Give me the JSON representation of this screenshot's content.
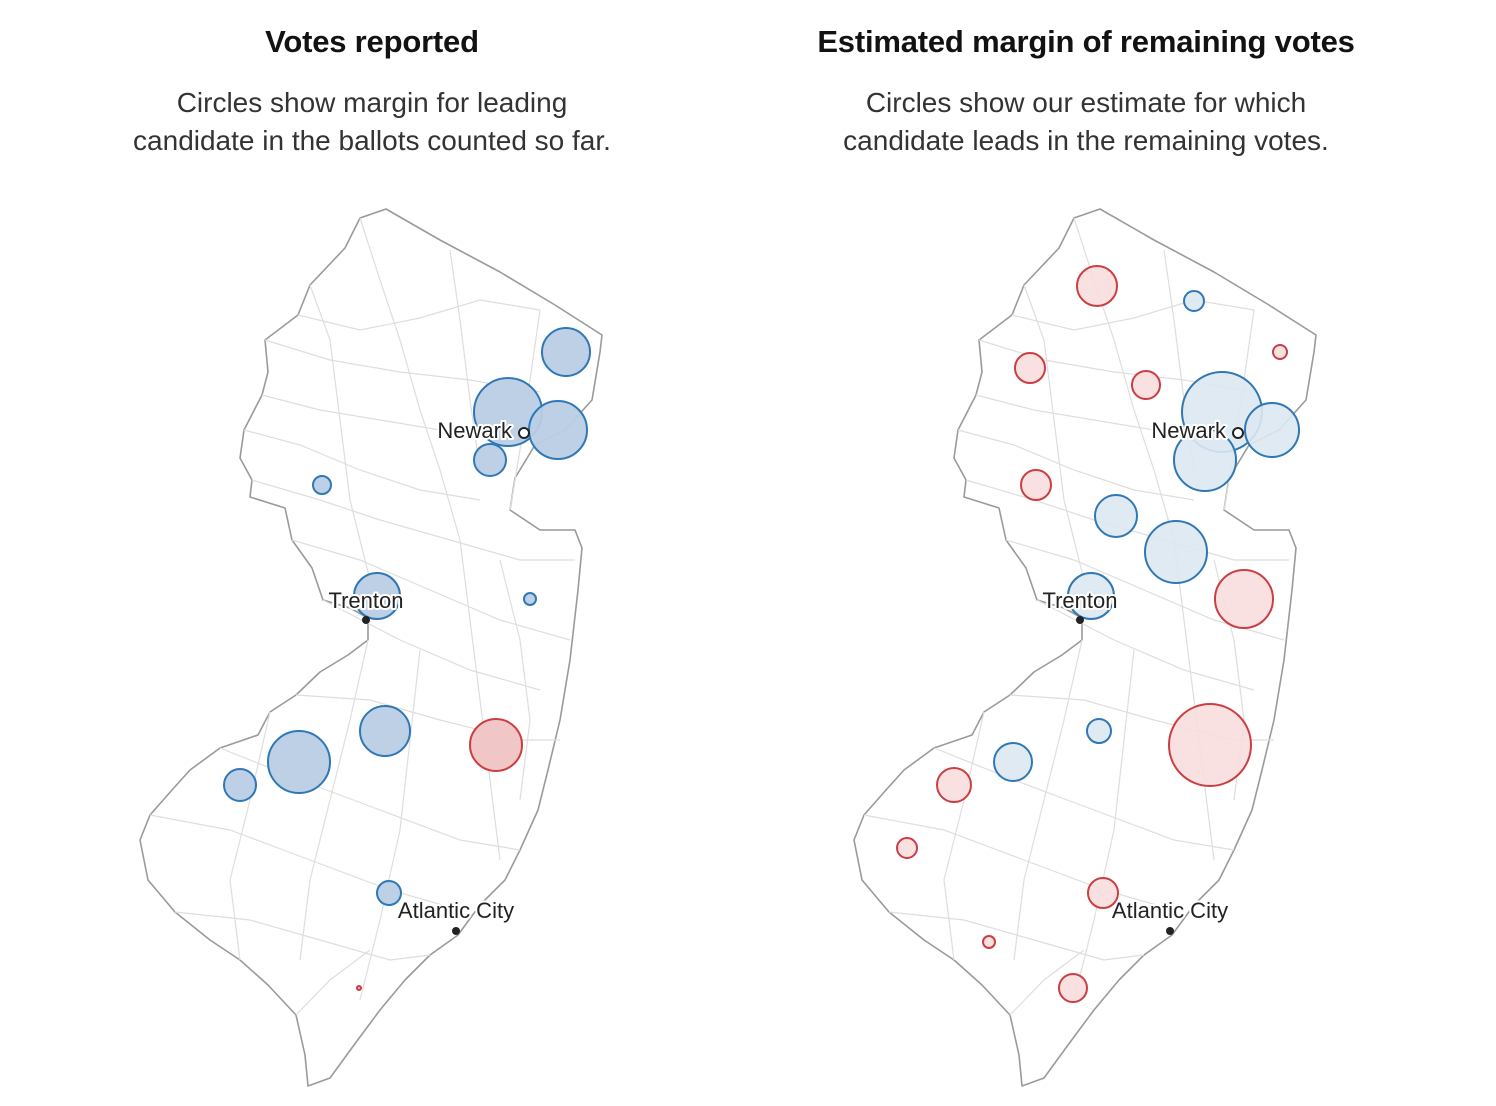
{
  "colors": {
    "dem_fill": "#b9cee5",
    "dem_stroke": "#2f78b5",
    "dem_light_fill": "#dde8f2",
    "rep_fill": "#f0c3c4",
    "rep_stroke": "#cc3e41",
    "rep_light_fill": "#f8dede",
    "state_outline": "#9a9a9a",
    "roads": "#dedede"
  },
  "panels": [
    {
      "title": "Votes reported",
      "subtitle_line1": "Circles show margin for leading",
      "subtitle_line2": "candidate in the ballots counted so far.",
      "cities": [
        {
          "name": "Newark",
          "marker": "open"
        },
        {
          "name": "Trenton",
          "marker": "dot"
        },
        {
          "name": "Atlantic City",
          "marker": "dot"
        }
      ],
      "circles": [
        {
          "party": "D",
          "county": 1,
          "r": 24
        },
        {
          "party": "D",
          "county": 2,
          "r": 34
        },
        {
          "party": "D",
          "county": 3,
          "r": 29
        },
        {
          "party": "D",
          "county": 4,
          "r": 16
        },
        {
          "party": "D",
          "county": 5,
          "r": 9
        },
        {
          "party": "D",
          "county": 6,
          "r": 23
        },
        {
          "party": "D",
          "county": 7,
          "r": 6
        },
        {
          "party": "D",
          "county": 8,
          "r": 25
        },
        {
          "party": "R",
          "county": 9,
          "r": 26
        },
        {
          "party": "D",
          "county": 10,
          "r": 31
        },
        {
          "party": "D",
          "county": 11,
          "r": 16
        },
        {
          "party": "D",
          "county": 12,
          "r": 12
        },
        {
          "party": "R",
          "county": 13,
          "r": 2
        }
      ]
    },
    {
      "title": "Estimated margin of remaining votes",
      "subtitle_line1": "Circles show our estimate for which",
      "subtitle_line2": "candidate leads in the remaining votes.",
      "cities": [
        {
          "name": "Newark",
          "marker": "open"
        },
        {
          "name": "Trenton",
          "marker": "dot"
        },
        {
          "name": "Atlantic City",
          "marker": "dot"
        }
      ],
      "circles": [
        {
          "party": "R",
          "county": 14,
          "r": 20
        },
        {
          "party": "D",
          "county": 15,
          "r": 10
        },
        {
          "party": "R",
          "county": 16,
          "r": 7
        },
        {
          "party": "R",
          "county": 17,
          "r": 15
        },
        {
          "party": "R",
          "county": 18,
          "r": 14
        },
        {
          "party": "D",
          "county": 2,
          "r": 40
        },
        {
          "party": "D",
          "county": 3,
          "r": 27
        },
        {
          "party": "D",
          "county": 19,
          "r": 31
        },
        {
          "party": "R",
          "county": 5,
          "r": 15
        },
        {
          "party": "D",
          "county": 20,
          "r": 21
        },
        {
          "party": "D",
          "county": 21,
          "r": 31
        },
        {
          "party": "R",
          "county": 22,
          "r": 29
        },
        {
          "party": "D",
          "county": 6,
          "r": 23
        },
        {
          "party": "D",
          "county": 23,
          "r": 12
        },
        {
          "party": "R",
          "county": 9,
          "r": 41
        },
        {
          "party": "D",
          "county": 10,
          "r": 19
        },
        {
          "party": "R",
          "county": 11,
          "r": 17
        },
        {
          "party": "R",
          "county": 24,
          "r": 10
        },
        {
          "party": "R",
          "county": 12,
          "r": 15
        },
        {
          "party": "R",
          "county": 25,
          "r": 6
        },
        {
          "party": "R",
          "county": 13,
          "r": 14
        }
      ]
    }
  ]
}
